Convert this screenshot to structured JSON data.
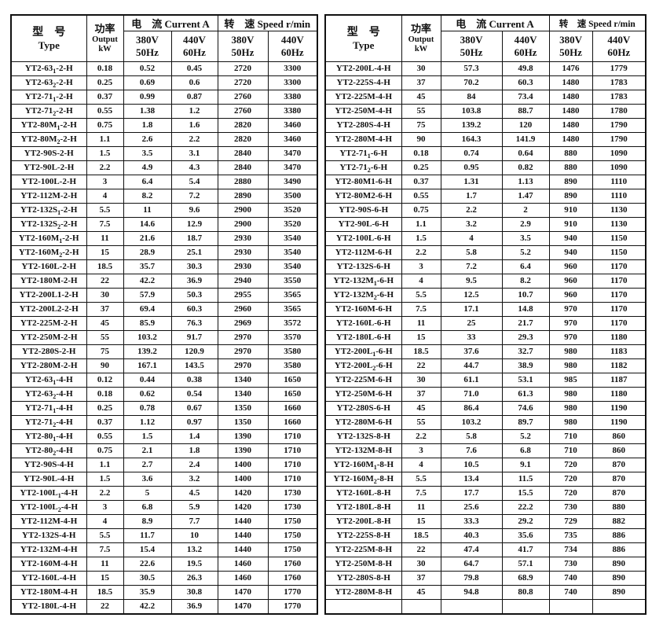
{
  "page": {
    "background": "#ffffff",
    "border_color": "#111111"
  },
  "header": {
    "type_zh": "型　号",
    "type_en": "Type",
    "power_zh": "功率",
    "power_en": "Output",
    "power_unit": "kW",
    "current_label": "电　流 Current A",
    "speed_label": "转　速 Speed r/min",
    "volt_380": "380V",
    "freq_50": "50Hz",
    "volt_440": "440V",
    "freq_60": "60Hz"
  },
  "left_table": {
    "rows": [
      [
        "YT2-63₁-2-H",
        "0.18",
        "0.52",
        "0.45",
        "2720",
        "3300"
      ],
      [
        "YT2-63₂-2-H",
        "0.25",
        "0.69",
        "0.6",
        "2720",
        "3300"
      ],
      [
        "YT2-71₁-2-H",
        "0.37",
        "0.99",
        "0.87",
        "2760",
        "3380"
      ],
      [
        "YT2-71₂-2-H",
        "0.55",
        "1.38",
        "1.2",
        "2760",
        "3380"
      ],
      [
        "YT2-80M₁-2-H",
        "0.75",
        "1.8",
        "1.6",
        "2820",
        "3460"
      ],
      [
        "YT2-80M₂-2-H",
        "1.1",
        "2.6",
        "2.2",
        "2820",
        "3460"
      ],
      [
        "YT2-90S-2-H",
        "1.5",
        "3.5",
        "3.1",
        "2840",
        "3470"
      ],
      [
        "YT2-90L-2-H",
        "2.2",
        "4.9",
        "4.3",
        "2840",
        "3470"
      ],
      [
        "YT2-100L-2-H",
        "3",
        "6.4",
        "5.4",
        "2880",
        "3490"
      ],
      [
        "YT2-112M-2-H",
        "4",
        "8.2",
        "7.2",
        "2890",
        "3500"
      ],
      [
        "YT2-132S₁-2-H",
        "5.5",
        "11",
        "9.6",
        "2900",
        "3520"
      ],
      [
        "YT2-132S₂-2-H",
        "7.5",
        "14.6",
        "12.9",
        "2900",
        "3520"
      ],
      [
        "YT2-160M₁-2-H",
        "11",
        "21.6",
        "18.7",
        "2930",
        "3540"
      ],
      [
        "YT2-160M₂-2-H",
        "15",
        "28.9",
        "25.1",
        "2930",
        "3540"
      ],
      [
        "YT2-160L-2-H",
        "18.5",
        "35.7",
        "30.3",
        "2930",
        "3540"
      ],
      [
        "YT2-180M-2-H",
        "22",
        "42.2",
        "36.9",
        "2940",
        "3550"
      ],
      [
        "YT2-200L1-2-H",
        "30",
        "57.9",
        "50.3",
        "2955",
        "3565"
      ],
      [
        "YT2-200L2-2-H",
        "37",
        "69.4",
        "60.3",
        "2960",
        "3565"
      ],
      [
        "YT2-225M-2-H",
        "45",
        "85.9",
        "76.3",
        "2969",
        "3572"
      ],
      [
        "YT2-250M-2-H",
        "55",
        "103.2",
        "91.7",
        "2970",
        "3570"
      ],
      [
        "YT2-280S-2-H",
        "75",
        "139.2",
        "120.9",
        "2970",
        "3580"
      ],
      [
        "YT2-280M-2-H",
        "90",
        "167.1",
        "143.5",
        "2970",
        "3580"
      ],
      [
        "YT2-63₁-4-H",
        "0.12",
        "0.44",
        "0.38",
        "1340",
        "1650"
      ],
      [
        "YT2-63₂-4-H",
        "0.18",
        "0.62",
        "0.54",
        "1340",
        "1650"
      ],
      [
        "YT2-71₁-4-H",
        "0.25",
        "0.78",
        "0.67",
        "1350",
        "1660"
      ],
      [
        "YT2-71₂-4-H",
        "0.37",
        "1.12",
        "0.97",
        "1350",
        "1660"
      ],
      [
        "YT2-80₁-4-H",
        "0.55",
        "1.5",
        "1.4",
        "1390",
        "1710"
      ],
      [
        "YT2-80₂-4-H",
        "0.75",
        "2.1",
        "1.8",
        "1390",
        "1710"
      ],
      [
        "YT2-90S-4-H",
        "1.1",
        "2.7",
        "2.4",
        "1400",
        "1710"
      ],
      [
        "YT2-90L-4-H",
        "1.5",
        "3.6",
        "3.2",
        "1400",
        "1710"
      ],
      [
        "YT2-100L₁-4-H",
        "2.2",
        "5",
        "4.5",
        "1420",
        "1730"
      ],
      [
        "YT2-100L₂-4-H",
        "3",
        "6.8",
        "5.9",
        "1420",
        "1730"
      ],
      [
        "YT2-112M-4-H",
        "4",
        "8.9",
        "7.7",
        "1440",
        "1750"
      ],
      [
        "YT2-132S-4-H",
        "5.5",
        "11.7",
        "10",
        "1440",
        "1750"
      ],
      [
        "YT2-132M-4-H",
        "7.5",
        "15.4",
        "13.2",
        "1440",
        "1750"
      ],
      [
        "YT2-160M-4-H",
        "11",
        "22.6",
        "19.5",
        "1460",
        "1760"
      ],
      [
        "YT2-160L-4-H",
        "15",
        "30.5",
        "26.3",
        "1460",
        "1760"
      ],
      [
        "YT2-180M-4-H",
        "18.5",
        "35.9",
        "30.8",
        "1470",
        "1770"
      ],
      [
        "YT2-180L-4-H",
        "22",
        "42.2",
        "36.9",
        "1470",
        "1770"
      ]
    ]
  },
  "right_table": {
    "rows": [
      [
        "YT2-200L-4-H",
        "30",
        "57.3",
        "49.8",
        "1476",
        "1779"
      ],
      [
        "YT2-225S-4-H",
        "37",
        "70.2",
        "60.3",
        "1480",
        "1783"
      ],
      [
        "YT2-225M-4-H",
        "45",
        "84",
        "73.4",
        "1480",
        "1783"
      ],
      [
        "YT2-250M-4-H",
        "55",
        "103.8",
        "88.7",
        "1480",
        "1780"
      ],
      [
        "YT2-280S-4-H",
        "75",
        "139.2",
        "120",
        "1480",
        "1790"
      ],
      [
        "YT2-280M-4-H",
        "90",
        "164.3",
        "141.9",
        "1480",
        "1790"
      ],
      [
        "YT2-71₁-6-H",
        "0.18",
        "0.74",
        "0.64",
        "880",
        "1090"
      ],
      [
        "YT2-71₂-6-H",
        "0.25",
        "0.95",
        "0.82",
        "880",
        "1090"
      ],
      [
        "YT2-80M1-6-H",
        "0.37",
        "1.31",
        "1.13",
        "890",
        "1110"
      ],
      [
        "YT2-80M2-6-H",
        "0.55",
        "1.7",
        "1.47",
        "890",
        "1110"
      ],
      [
        "YT2-90S-6-H",
        "0.75",
        "2.2",
        "2",
        "910",
        "1130"
      ],
      [
        "YT2-90L-6-H",
        "1.1",
        "3.2",
        "2.9",
        "910",
        "1130"
      ],
      [
        "YT2-100L-6-H",
        "1.5",
        "4",
        "3.5",
        "940",
        "1150"
      ],
      [
        "YT2-112M-6-H",
        "2.2",
        "5.8",
        "5.2",
        "940",
        "1150"
      ],
      [
        "YT2-132S-6-H",
        "3",
        "7.2",
        "6.4",
        "960",
        "1170"
      ],
      [
        "YT2-132M₁-6-H",
        "4",
        "9.5",
        "8.2",
        "960",
        "1170"
      ],
      [
        "YT2-132M₂-6-H",
        "5.5",
        "12.5",
        "10.7",
        "960",
        "1170"
      ],
      [
        "YT2-160M-6-H",
        "7.5",
        "17.1",
        "14.8",
        "970",
        "1170"
      ],
      [
        "YT2-160L-6-H",
        "11",
        "25",
        "21.7",
        "970",
        "1170"
      ],
      [
        "YT2-180L-6-H",
        "15",
        "33",
        "29.3",
        "970",
        "1180"
      ],
      [
        "YT2-200L₁-6-H",
        "18.5",
        "37.6",
        "32.7",
        "980",
        "1183"
      ],
      [
        "YT2-200L₂-6-H",
        "22",
        "44.7",
        "38.9",
        "980",
        "1182"
      ],
      [
        "YT2-225M-6-H",
        "30",
        "61.1",
        "53.1",
        "985",
        "1187"
      ],
      [
        "YT2-250M-6-H",
        "37",
        "71.0",
        "61.3",
        "980",
        "1180"
      ],
      [
        "YT2-280S-6-H",
        "45",
        "86.4",
        "74.6",
        "980",
        "1190"
      ],
      [
        "YT2-280M-6-H",
        "55",
        "103.2",
        "89.7",
        "980",
        "1190"
      ],
      [
        "YT2-132S-8-H",
        "2.2",
        "5.8",
        "5.2",
        "710",
        "860"
      ],
      [
        "YT2-132M-8-H",
        "3",
        "7.6",
        "6.8",
        "710",
        "860"
      ],
      [
        "YT2-160M₁-8-H",
        "4",
        "10.5",
        "9.1",
        "720",
        "870"
      ],
      [
        "YT2-160M₂-8-H",
        "5.5",
        "13.4",
        "11.5",
        "720",
        "870"
      ],
      [
        "YT2-160L-8-H",
        "7.5",
        "17.7",
        "15.5",
        "720",
        "870"
      ],
      [
        "YT2-180L-8-H",
        "11",
        "25.6",
        "22.2",
        "730",
        "880"
      ],
      [
        "YT2-200L-8-H",
        "15",
        "33.3",
        "29.2",
        "729",
        "882"
      ],
      [
        "YT2-225S-8-H",
        "18.5",
        "40.3",
        "35.6",
        "735",
        "886"
      ],
      [
        "YT2-225M-8-H",
        "22",
        "47.4",
        "41.7",
        "734",
        "886"
      ],
      [
        "YT2-250M-8-H",
        "30",
        "64.7",
        "57.1",
        "730",
        "890"
      ],
      [
        "YT2-280S-8-H",
        "37",
        "79.8",
        "68.9",
        "740",
        "890"
      ],
      [
        "YT2-280M-8-H",
        "45",
        "94.8",
        "80.8",
        "740",
        "890"
      ],
      [
        "",
        "",
        "",
        "",
        "",
        ""
      ]
    ]
  }
}
